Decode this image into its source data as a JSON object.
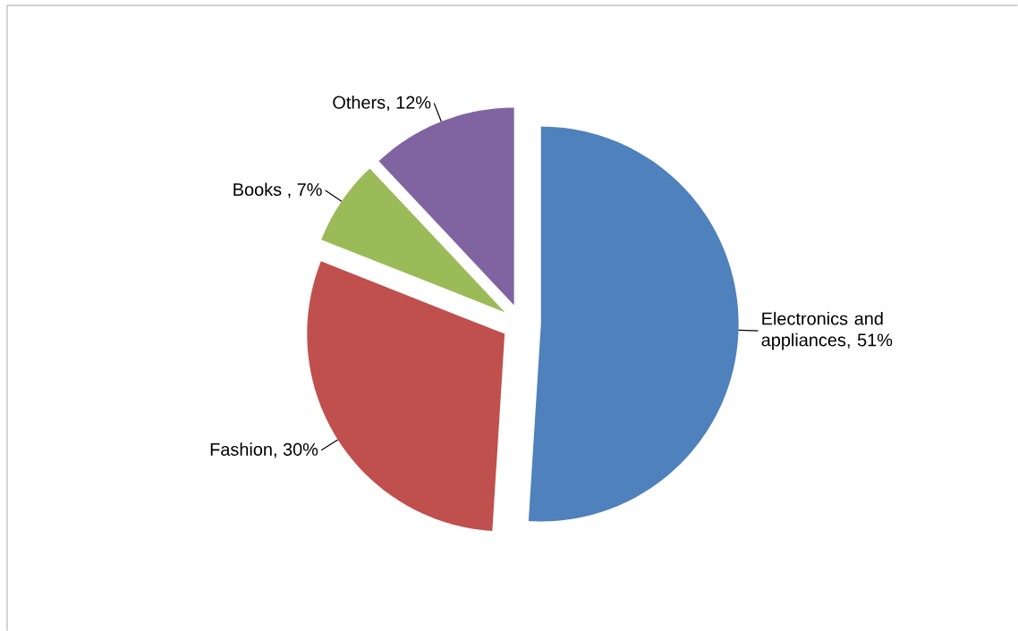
{
  "chart_data": {
    "type": "pie",
    "categories": [
      "Electronics and appliances",
      "Fashion",
      "Books ",
      "Others"
    ],
    "values": [
      51,
      30,
      7,
      12
    ],
    "colors": [
      "#4f81bd",
      "#c0504d",
      "#9bbb59",
      "#8064a2"
    ],
    "value_labels": [
      ", 51%",
      ", 30%",
      ", 7%",
      ", 12%"
    ]
  }
}
